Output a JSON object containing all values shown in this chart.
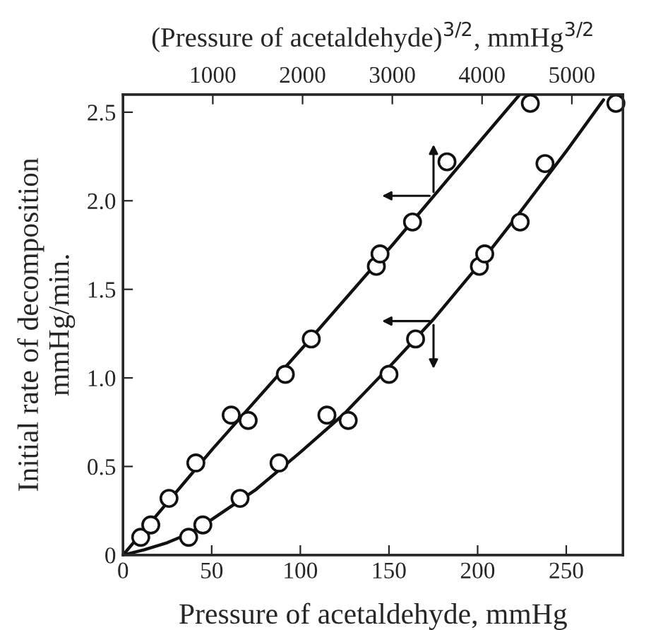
{
  "chart_data": {
    "type": "scatter",
    "xlabel": "Pressure of acetaldehyde, mmHg",
    "x2label": "(Pressure of acetaldehyde)$^{3/2}$, mmHg$^{3/2}$",
    "ylabel": "Initial rate of decomposition\nmmHg/min.",
    "xlim": [
      0,
      282
    ],
    "xticks": [
      0,
      50,
      100,
      150,
      200,
      250
    ],
    "x2lim": [
      0,
      5570
    ],
    "x2ticks": [
      1000,
      2000,
      3000,
      4000,
      5000
    ],
    "ylim": [
      0,
      2.6
    ],
    "yticks": [
      0,
      {
        "value": 0.5,
        "label": "0.5"
      },
      {
        "value": 1.0,
        "label": "1.0"
      },
      {
        "value": 1.5,
        "label": "1.5"
      },
      {
        "value": 2.0,
        "label": "2.0"
      },
      {
        "value": 2.5,
        "label": "2.5"
      }
    ],
    "marker": "circle",
    "grid": false,
    "series": [
      {
        "axis": "x2",
        "color": "#111111",
        "x": [
          197,
          309,
          512,
          811,
          1205,
          1394,
          1808,
          2097,
          2822,
          2863,
          3225,
          3609,
          4538
        ],
        "values": [
          0.1,
          0.17,
          0.32,
          0.52,
          0.79,
          0.76,
          1.02,
          1.22,
          1.63,
          1.7,
          1.88,
          2.22,
          2.55
        ]
      },
      {
        "color": "#111111",
        "x": [
          37,
          45,
          66,
          88,
          115,
          127,
          150,
          165,
          201,
          204,
          224,
          238,
          278
        ],
        "values": [
          0.1,
          0.17,
          0.32,
          0.52,
          0.79,
          0.76,
          1.02,
          1.22,
          1.63,
          1.7,
          1.88,
          2.21,
          2.55
        ]
      },
      {
        "type": "line",
        "axis": "x2",
        "color": "#111111",
        "marker": "none",
        "x": [
          0,
          500,
          1000,
          2000,
          3000,
          4000,
          4420
        ],
        "values": [
          0,
          0.3,
          0.6,
          1.17,
          1.75,
          2.35,
          2.6
        ]
      },
      {
        "type": "line",
        "color": "#111111",
        "marker": "none",
        "x": [
          0,
          12,
          25,
          37,
          50,
          75,
          100,
          125,
          150,
          175,
          200,
          225,
          250,
          271
        ],
        "values": [
          0,
          0.03,
          0.07,
          0.12,
          0.2,
          0.37,
          0.58,
          0.8,
          1.06,
          1.33,
          1.63,
          1.95,
          2.28,
          2.57
        ]
      }
    ]
  }
}
